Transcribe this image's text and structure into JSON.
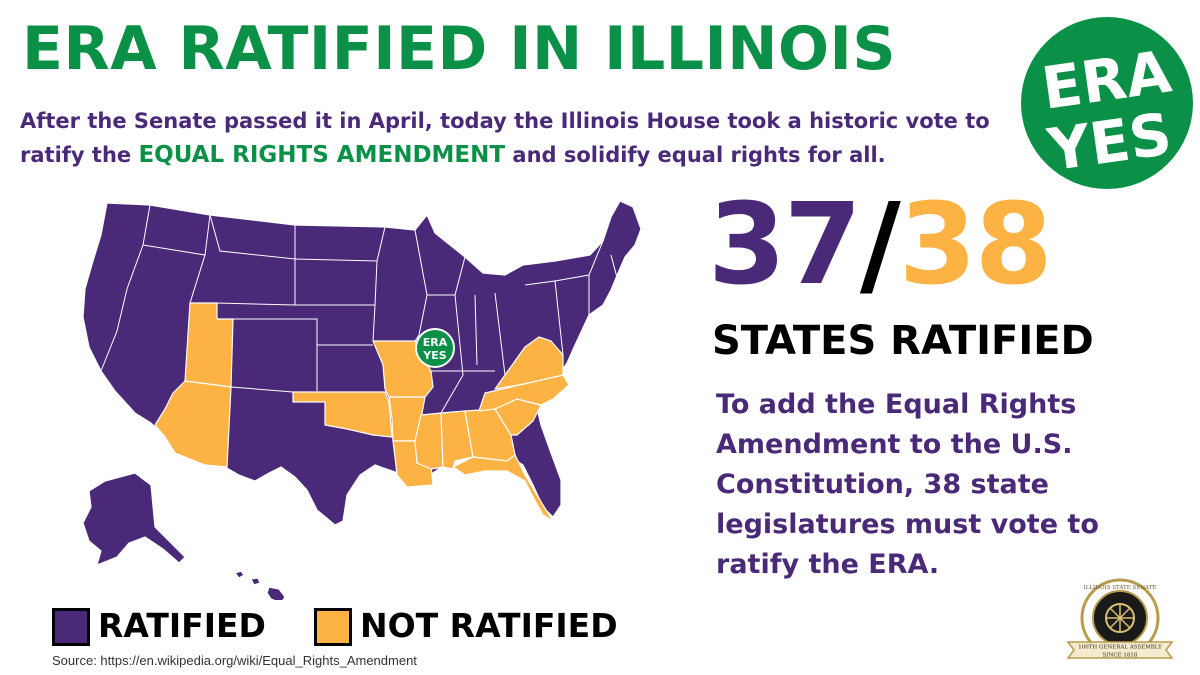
{
  "header": {
    "title": "ERA RATIFIED IN ILLINOIS",
    "subtitle_part1": "After the Senate passed it in April, today the Illinois House took a historic vote to ratify the ",
    "subtitle_emphasis": "EQUAL RIGHTS AMENDMENT",
    "subtitle_part2": " and solidify equal rights for all."
  },
  "logo": {
    "line1": "ERA",
    "line2": "YES",
    "color": "#0a9147"
  },
  "tally": {
    "ratified": "37",
    "separator": "/",
    "required": "38",
    "label": "STATES RATIFIED"
  },
  "explanation": "To add the Equal Rights Amendment to the U.S. Constitution, 38 state legislatures must vote to ratify the ERA.",
  "map": {
    "highlight_state": "Illinois",
    "marker_line1": "ERA",
    "marker_line2": "YES",
    "colors": {
      "ratified": "#4a2a78",
      "not_ratified": "#fdb244",
      "border": "#ffffff"
    },
    "not_ratified_states": [
      "Utah",
      "Arizona",
      "Oklahoma",
      "Missouri",
      "Arkansas",
      "Louisiana",
      "Mississippi",
      "Alabama",
      "Georgia",
      "South Carolina",
      "North Carolina",
      "Florida",
      "Virginia"
    ]
  },
  "legend": [
    {
      "label": "RATIFIED",
      "color": "#4a2a78"
    },
    {
      "label": "NOT RATIFIED",
      "color": "#fdb244"
    }
  ],
  "source": "Source: https://en.wikipedia.org/wiki/Equal_Rights_Amendment",
  "seal": {
    "top_text": "ILLINOIS STATE SENATE",
    "ribbon_text": "100TH GENERAL ASSEMBLY",
    "bottom_text": "SINCE 1818"
  }
}
